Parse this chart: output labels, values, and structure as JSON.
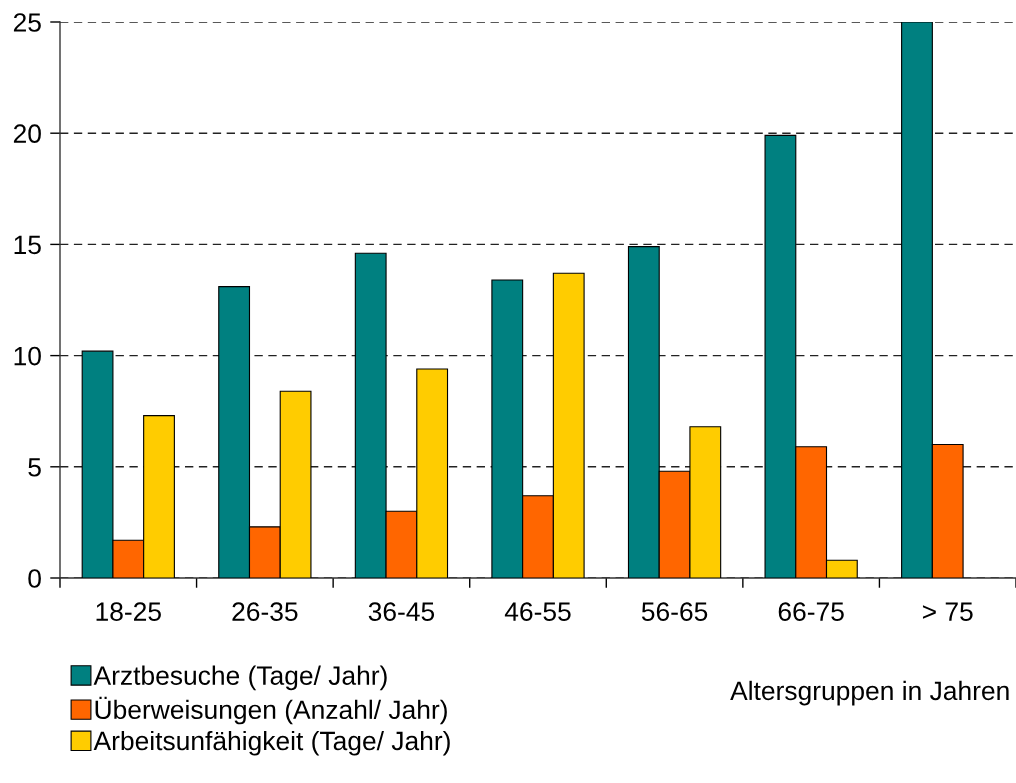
{
  "chart_data": {
    "type": "bar",
    "categories": [
      "18-25",
      "26-35",
      "36-45",
      "46-55",
      "56-65",
      "66-75",
      "> 75"
    ],
    "xlabel": "Altersgruppen in Jahren",
    "series": [
      {
        "name": "Arztbesuche (Tage/ Jahr)",
        "color": "#008080",
        "values": [
          10.2,
          13.1,
          14.6,
          13.4,
          14.9,
          19.9,
          25.0
        ]
      },
      {
        "name": "Überweisungen (Anzahl/ Jahr)",
        "color": "#ff6600",
        "values": [
          1.7,
          2.3,
          3.0,
          3.7,
          4.8,
          5.9,
          6.0
        ]
      },
      {
        "name": "Arbeitsunfähigkeit (Tage/ Jahr)",
        "color": "#ffcc00",
        "values": [
          7.3,
          8.4,
          9.4,
          13.7,
          6.8,
          0.8,
          null
        ]
      }
    ],
    "ylim": [
      0,
      25
    ],
    "yticks": [
      0,
      5,
      10,
      15,
      20,
      25
    ],
    "grid": "y",
    "legend": "bottom left"
  }
}
